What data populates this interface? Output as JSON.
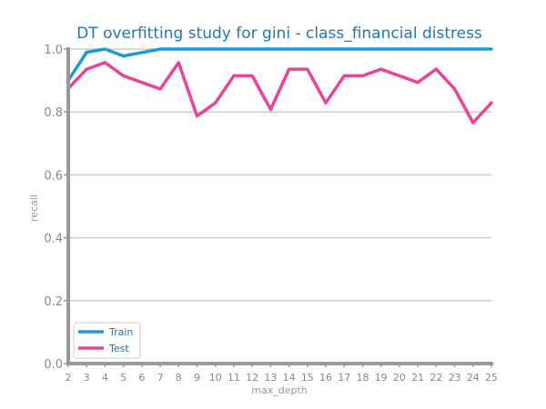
{
  "chart_data": {
    "type": "line",
    "title": "DT overfitting study for gini - class_financial distress",
    "xlabel": "max_depth",
    "ylabel": "recall",
    "x": [
      2,
      3,
      4,
      5,
      6,
      7,
      8,
      9,
      10,
      11,
      12,
      13,
      14,
      15,
      16,
      17,
      18,
      19,
      20,
      21,
      22,
      23,
      24,
      25
    ],
    "xlim": [
      2,
      25
    ],
    "ylim": [
      0,
      1.0
    ],
    "yticks": [
      "0.0",
      "0.2",
      "0.4",
      "0.6",
      "0.8",
      "1.0"
    ],
    "grid": "horizontal",
    "legend_position": "bottom-left",
    "series": [
      {
        "name": "Train",
        "color": "#1f9ad6",
        "values": [
          0.9,
          0.99,
          1.0,
          0.978,
          0.989,
          1.0,
          1.0,
          1.0,
          1.0,
          1.0,
          1.0,
          1.0,
          1.0,
          1.0,
          1.0,
          1.0,
          1.0,
          1.0,
          1.0,
          1.0,
          1.0,
          1.0,
          1.0,
          1.0
        ]
      },
      {
        "name": "Test",
        "color": "#e8449a",
        "values": [
          0.875,
          0.936,
          0.957,
          0.915,
          0.894,
          0.873,
          0.957,
          0.787,
          0.829,
          0.915,
          0.915,
          0.808,
          0.936,
          0.936,
          0.829,
          0.915,
          0.915,
          0.936,
          0.915,
          0.894,
          0.936,
          0.873,
          0.766,
          0.829
        ]
      }
    ]
  }
}
